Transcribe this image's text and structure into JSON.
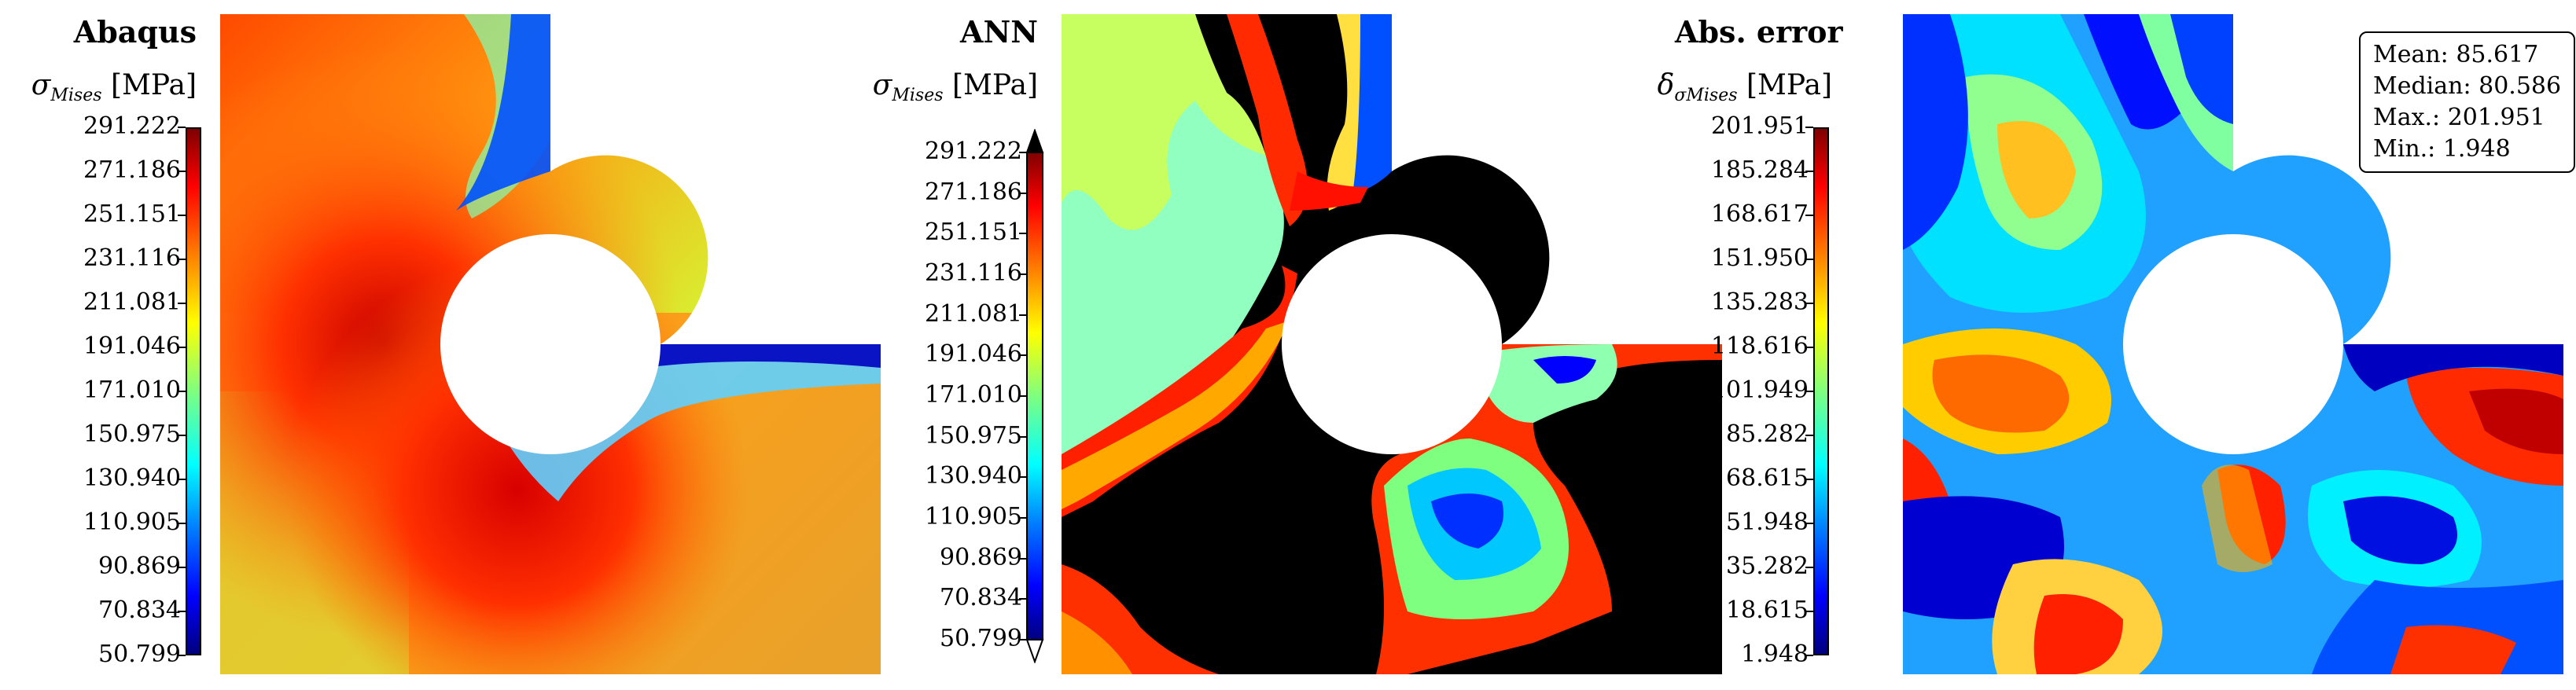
{
  "chart_data": [
    {
      "type": "heatmap",
      "title": "Abaqus",
      "quantity_symbol": "σ",
      "quantity_sub": "Mises",
      "unit": "[MPa]",
      "colormap": "jet",
      "ticks": [
        "291.222",
        "271.186",
        "251.151",
        "231.116",
        "211.081",
        "191.046",
        "171.010",
        "150.975",
        "130.940",
        "110.905",
        "90.869",
        "70.834",
        "50.799"
      ],
      "range": [
        50.799,
        291.222
      ],
      "extend_arrows": false
    },
    {
      "type": "heatmap",
      "title": "ANN",
      "quantity_symbol": "σ",
      "quantity_sub": "Mises",
      "unit": "[MPa]",
      "colormap": "jet",
      "ticks": [
        "291.222",
        "271.186",
        "251.151",
        "231.116",
        "211.081",
        "191.046",
        "171.010",
        "150.975",
        "130.940",
        "110.905",
        "90.869",
        "70.834",
        "50.799"
      ],
      "range": [
        50.799,
        291.222
      ],
      "extend_arrows": true
    },
    {
      "type": "heatmap",
      "title": "Abs. error",
      "quantity_symbol": "δ",
      "quantity_sub": "Mises",
      "unit": "[MPa]",
      "colormap": "jet",
      "ticks": [
        "201.951",
        "185.284",
        "168.617",
        "151.950",
        "135.283",
        "118.616",
        "101.949",
        "85.282",
        "68.615",
        "51.948",
        "35.282",
        "18.615",
        "1.948"
      ],
      "range": [
        1.948,
        201.951
      ],
      "extend_arrows": false,
      "stats": [
        "Mean: 85.617",
        "Median: 80.586",
        "Max.: 201.951",
        "Min.: 1.948"
      ]
    }
  ]
}
